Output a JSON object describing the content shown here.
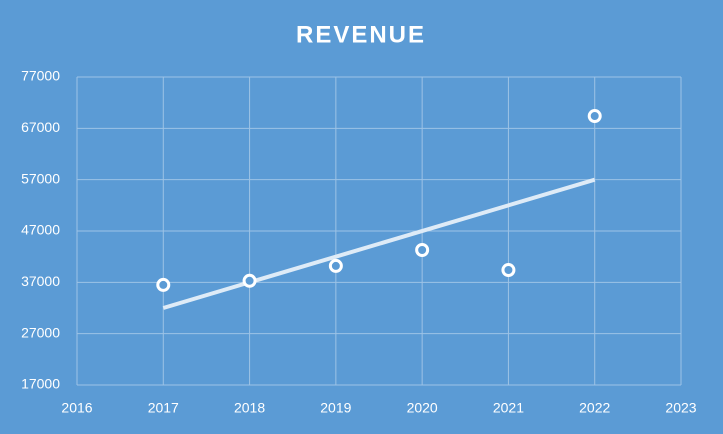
{
  "chart_data": {
    "type": "scatter",
    "title": "REVENUE",
    "x": [
      2017,
      2018,
      2019,
      2020,
      2021,
      2022
    ],
    "values": [
      36500,
      37300,
      40200,
      43300,
      39400,
      69400
    ],
    "color": "#ffffff",
    "trendline": {
      "x": [
        2017,
        2022
      ],
      "values": [
        32000,
        57000
      ],
      "color": "#deebf7"
    },
    "xlim": [
      2016,
      2023
    ],
    "xticks": [
      2016,
      2017,
      2018,
      2019,
      2020,
      2021,
      2022,
      2023
    ],
    "ylim": [
      17000,
      77000
    ],
    "yticks": [
      17000,
      27000,
      37000,
      47000,
      57000,
      67000,
      77000
    ],
    "grid": true
  }
}
